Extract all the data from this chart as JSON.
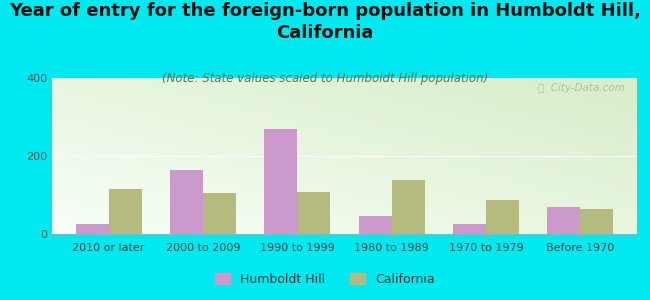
{
  "title": "Year of entry for the foreign-born population in Humboldt Hill,\nCalifornia",
  "subtitle": "(Note: State values scaled to Humboldt Hill population)",
  "categories": [
    "2010 or later",
    "2000 to 2009",
    "1990 to 1999",
    "1980 to 1989",
    "1970 to 1979",
    "Before 1970"
  ],
  "humboldt_values": [
    25,
    165,
    270,
    45,
    25,
    68
  ],
  "california_values": [
    115,
    105,
    108,
    138,
    88,
    65
  ],
  "humboldt_color": "#cc99cc",
  "california_color": "#b5bb7e",
  "background_color": "#00e8f0",
  "ylim": [
    0,
    400
  ],
  "yticks": [
    0,
    200,
    400
  ],
  "title_fontsize": 13,
  "subtitle_fontsize": 8.5,
  "tick_fontsize": 8,
  "legend_fontsize": 9,
  "watermark_text": "ⓘ  City-Data.com"
}
